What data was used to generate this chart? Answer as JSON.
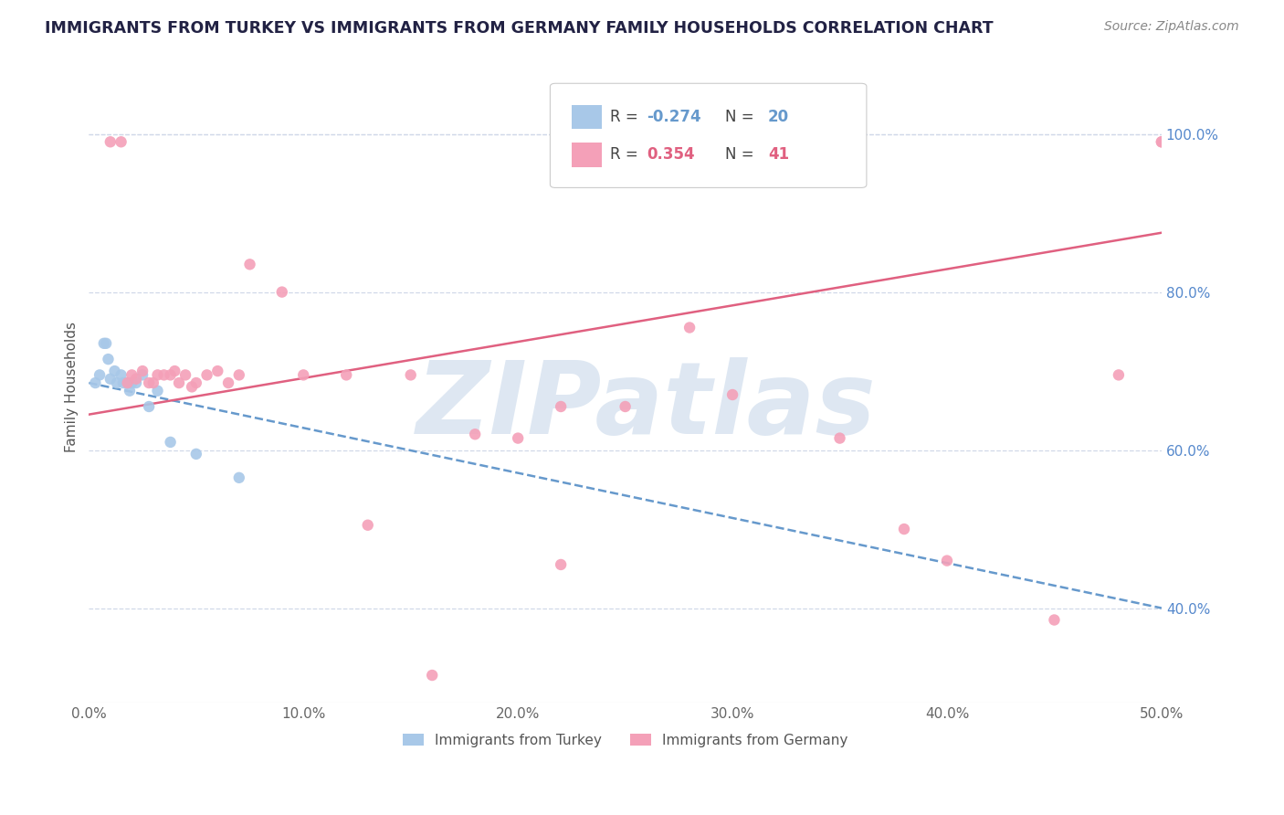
{
  "title": "IMMIGRANTS FROM TURKEY VS IMMIGRANTS FROM GERMANY FAMILY HOUSEHOLDS CORRELATION CHART",
  "source": "Source: ZipAtlas.com",
  "ylabel_left": "Family Households",
  "legend_labels": [
    "Immigrants from Turkey",
    "Immigrants from Germany"
  ],
  "r_turkey": -0.274,
  "n_turkey": 20,
  "r_germany": 0.354,
  "n_germany": 41,
  "color_turkey": "#a8c8e8",
  "color_germany": "#f4a0b8",
  "trendline_turkey_color": "#6699cc",
  "trendline_germany_color": "#e06080",
  "right_axis_color": "#5588cc",
  "title_color": "#222244",
  "xlim": [
    0.0,
    0.5
  ],
  "ylim": [
    0.28,
    1.08
  ],
  "right_yticks": [
    0.4,
    0.6,
    0.8,
    1.0
  ],
  "right_yticklabels": [
    "40.0%",
    "60.0%",
    "80.0%",
    "100.0%"
  ],
  "xticks": [
    0.0,
    0.1,
    0.2,
    0.3,
    0.4,
    0.5
  ],
  "xticklabels": [
    "0.0%",
    "10.0%",
    "20.0%",
    "30.0%",
    "40.0%",
    "50.0%"
  ],
  "turkey_x": [
    0.003,
    0.005,
    0.007,
    0.008,
    0.009,
    0.01,
    0.012,
    0.013,
    0.015,
    0.016,
    0.018,
    0.019,
    0.02,
    0.022,
    0.025,
    0.028,
    0.032,
    0.038,
    0.05,
    0.07
  ],
  "turkey_y": [
    0.685,
    0.695,
    0.735,
    0.735,
    0.715,
    0.69,
    0.7,
    0.685,
    0.695,
    0.685,
    0.685,
    0.675,
    0.685,
    0.685,
    0.695,
    0.655,
    0.675,
    0.61,
    0.595,
    0.565
  ],
  "germany_x": [
    0.01,
    0.015,
    0.018,
    0.02,
    0.022,
    0.025,
    0.028,
    0.03,
    0.032,
    0.035,
    0.038,
    0.04,
    0.042,
    0.045,
    0.048,
    0.05,
    0.055,
    0.06,
    0.065,
    0.07,
    0.075,
    0.09,
    0.1,
    0.12,
    0.15,
    0.18,
    0.2,
    0.22,
    0.25,
    0.28,
    0.3,
    0.35,
    0.38,
    0.4,
    0.45,
    0.48,
    0.5,
    0.5,
    0.22,
    0.16,
    0.13
  ],
  "germany_y": [
    0.99,
    0.99,
    0.685,
    0.695,
    0.69,
    0.7,
    0.685,
    0.685,
    0.695,
    0.695,
    0.695,
    0.7,
    0.685,
    0.695,
    0.68,
    0.685,
    0.695,
    0.7,
    0.685,
    0.695,
    0.835,
    0.8,
    0.695,
    0.695,
    0.695,
    0.62,
    0.615,
    0.655,
    0.655,
    0.755,
    0.67,
    0.615,
    0.5,
    0.46,
    0.385,
    0.695,
    0.99,
    0.99,
    0.455,
    0.315,
    0.505
  ],
  "trendline_turkey_x0": 0.0,
  "trendline_turkey_x1": 0.5,
  "trendline_turkey_y0": 0.685,
  "trendline_turkey_y1": 0.4,
  "trendline_germany_x0": 0.0,
  "trendline_germany_x1": 0.5,
  "trendline_germany_y0": 0.645,
  "trendline_germany_y1": 0.875,
  "watermark": "ZIPatlas",
  "watermark_color": "#c8d8ea",
  "grid_color": "#d0d8e8",
  "background_color": "#ffffff"
}
